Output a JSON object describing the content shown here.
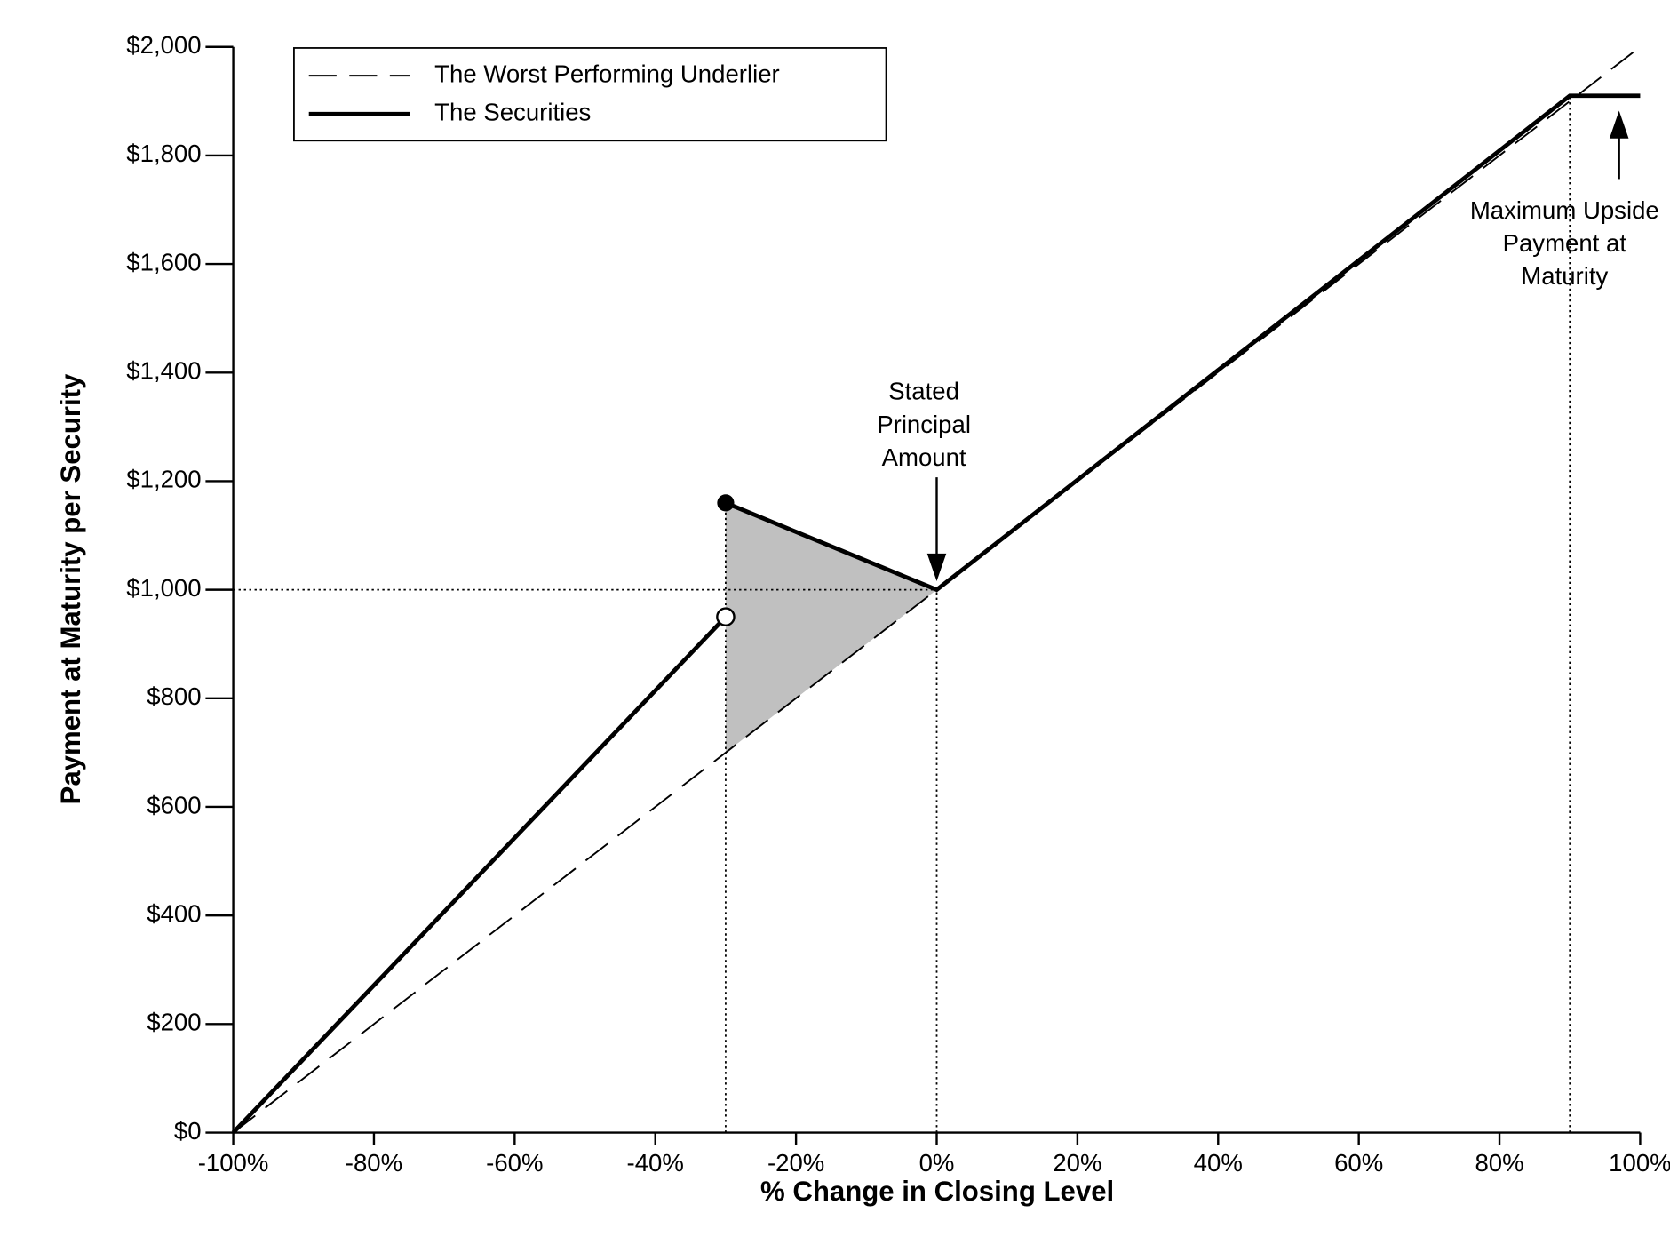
{
  "chart_data": {
    "type": "line",
    "xlabel": "% Change in Closing Level",
    "ylabel": "Payment at Maturity per Security",
    "xlim": [
      -100,
      100
    ],
    "ylim": [
      0,
      2000
    ],
    "xticks": [
      {
        "value": -100,
        "label": "-100%"
      },
      {
        "value": -80,
        "label": "-80%"
      },
      {
        "value": -60,
        "label": "-60%"
      },
      {
        "value": -40,
        "label": "-40%"
      },
      {
        "value": -20,
        "label": "-20%"
      },
      {
        "value": 0,
        "label": "0%"
      },
      {
        "value": 20,
        "label": "20%"
      },
      {
        "value": 40,
        "label": "40%"
      },
      {
        "value": 60,
        "label": "60%"
      },
      {
        "value": 80,
        "label": "80%"
      },
      {
        "value": 100,
        "label": "100%"
      }
    ],
    "yticks": [
      {
        "value": 0,
        "label": "$0"
      },
      {
        "value": 200,
        "label": "$200"
      },
      {
        "value": 400,
        "label": "$400"
      },
      {
        "value": 600,
        "label": "$600"
      },
      {
        "value": 800,
        "label": "$800"
      },
      {
        "value": 1000,
        "label": "$1,000"
      },
      {
        "value": 1200,
        "label": "$1,200"
      },
      {
        "value": 1400,
        "label": "$1,400"
      },
      {
        "value": 1600,
        "label": "$1,600"
      },
      {
        "value": 1800,
        "label": "$1,800"
      },
      {
        "value": 2000,
        "label": "$2,000"
      }
    ],
    "series": [
      {
        "name": "The Worst Performing Underlier",
        "color": "#000000",
        "dash": true,
        "x": [
          -100,
          100
        ],
        "values": [
          0,
          2000
        ]
      },
      {
        "name": "The Securities",
        "color": "#000000",
        "dash": false,
        "x": [
          -100,
          -30,
          null,
          -30,
          0,
          90,
          100
        ],
        "values": [
          0,
          950,
          null,
          1160,
          1000,
          1910,
          1910
        ]
      }
    ],
    "shaded_region": {
      "color": "#c0c0c0",
      "x": [
        -30,
        0,
        -30
      ],
      "values": [
        1160,
        1000,
        700
      ]
    },
    "annotations": [
      {
        "lines": [
          "Stated",
          "Principal",
          "Amount"
        ],
        "x": 0,
        "y": 1000
      },
      {
        "lines": [
          "Maximum Upside",
          "Payment at",
          "Maturity"
        ],
        "x": 97,
        "y": 1910
      }
    ]
  }
}
